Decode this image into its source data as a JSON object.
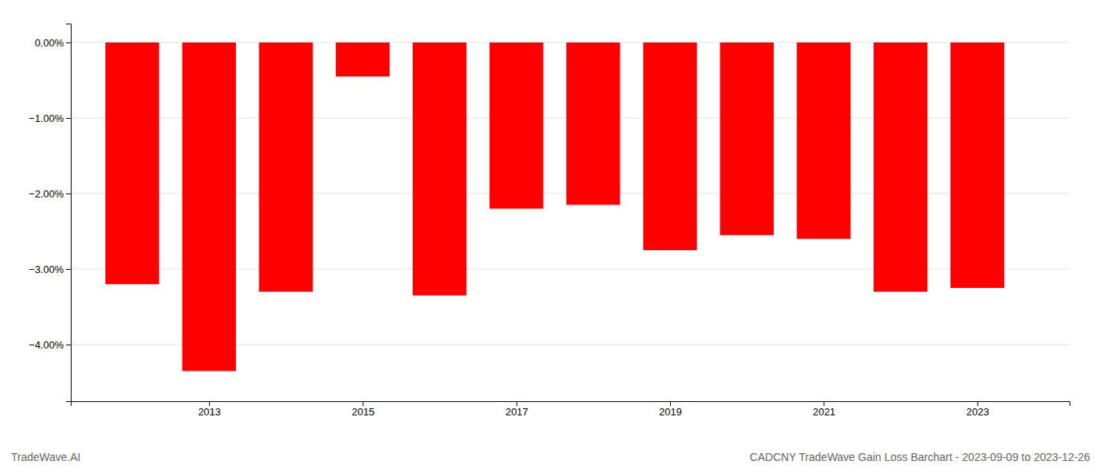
{
  "chart_data": {
    "type": "bar",
    "title": "CADCNY TradeWave Gain Loss Barchart - 2023-09-09 to 2023-12-26",
    "annotations": [
      "TradeWave.AI"
    ],
    "x": [
      2012,
      2013,
      2014,
      2015,
      2016,
      2017,
      2018,
      2019,
      2020,
      2021,
      2022,
      2023
    ],
    "values": [
      -3.2,
      -4.35,
      -3.3,
      -0.45,
      -3.35,
      -2.2,
      -2.15,
      -2.75,
      -2.55,
      -2.6,
      -3.3,
      -3.25
    ],
    "color": "#ff0000",
    "xlim": [
      2011.2,
      2024.2
    ],
    "xticks": [
      2013,
      2015,
      2017,
      2019,
      2021,
      2023
    ],
    "ylim": [
      -4.75,
      0.25
    ],
    "yticks": [
      {
        "value": 0.0,
        "label": "0.00%"
      },
      {
        "value": -1.0,
        "label": "−1.00%"
      },
      {
        "value": -2.0,
        "label": "−2.00%"
      },
      {
        "value": -3.0,
        "label": "−3.00%"
      },
      {
        "value": -4.0,
        "label": "−4.00%"
      }
    ],
    "grid": true
  }
}
